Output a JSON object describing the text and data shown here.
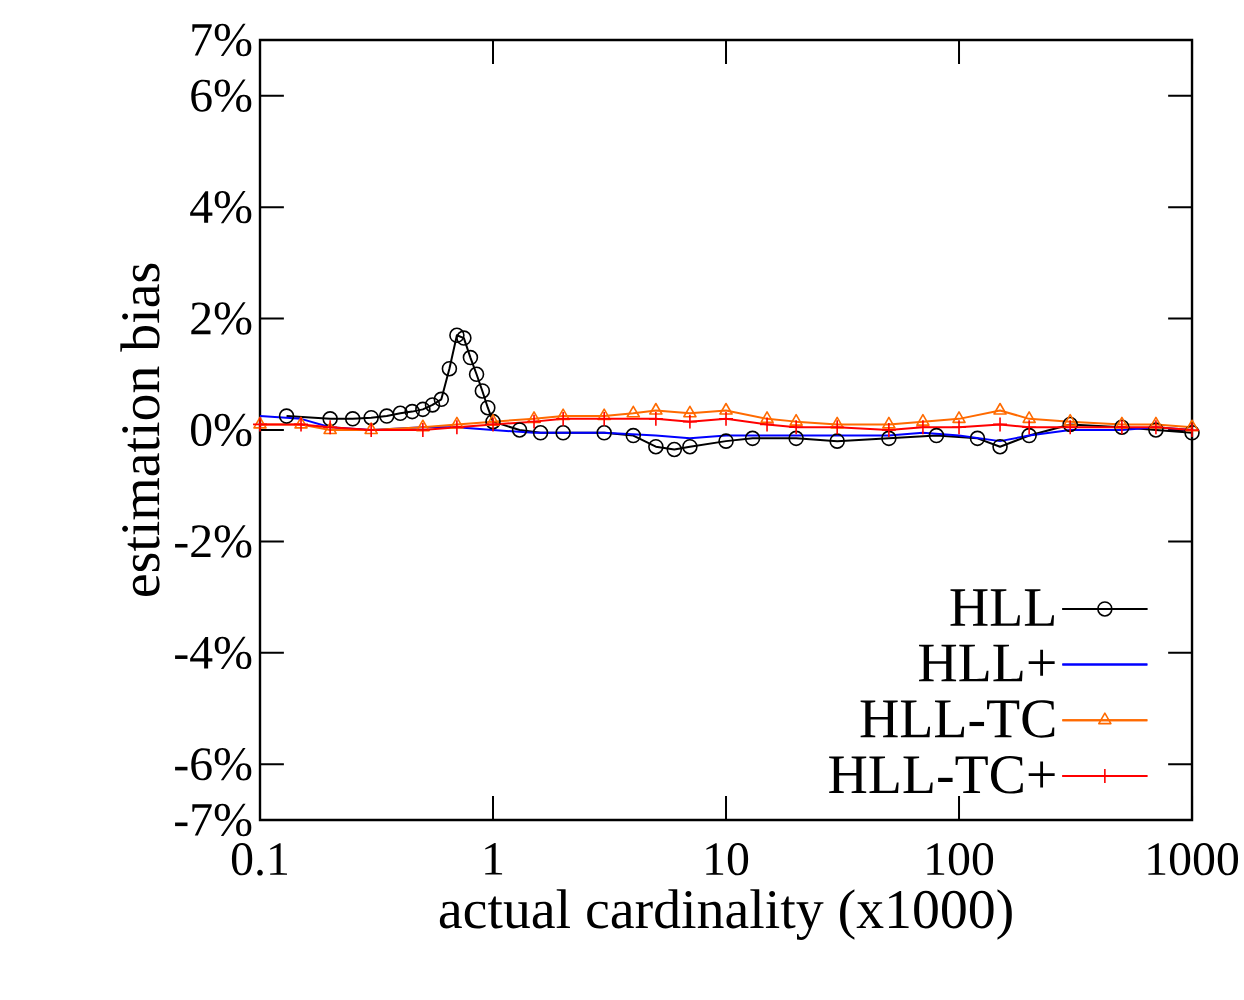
{
  "chart_data": {
    "type": "line",
    "xlabel": "actual cardinality (x1000)",
    "ylabel": "estimation bias",
    "log": "x",
    "grid": false,
    "legend": "bottom right",
    "xlim": [
      0.1,
      1000
    ],
    "xticks": [
      0.1,
      1,
      10,
      100,
      1000
    ],
    "ylim": [
      -7,
      7
    ],
    "yticks": [
      {
        "value": -7,
        "label": "-7%"
      },
      {
        "value": -6,
        "label": "-6%"
      },
      {
        "value": -4,
        "label": "-4%"
      },
      {
        "value": -2,
        "label": "-2%"
      },
      {
        "value": 0,
        "label": "0%"
      },
      {
        "value": 2,
        "label": "2%"
      },
      {
        "value": 4,
        "label": "4%"
      },
      {
        "value": 6,
        "label": "6%"
      },
      {
        "value": 7,
        "label": "7%"
      }
    ],
    "series": [
      {
        "name": "HLL",
        "color": "#000000",
        "marker": "circle",
        "x": [
          0.13,
          0.2,
          0.25,
          0.3,
          0.35,
          0.4,
          0.45,
          0.5,
          0.55,
          0.6,
          0.65,
          0.7,
          0.75,
          0.8,
          0.85,
          0.9,
          0.95,
          1.0,
          1.3,
          1.6,
          2,
          3,
          4,
          5,
          6,
          7,
          10,
          13,
          20,
          30,
          50,
          80,
          120,
          150,
          200,
          300,
          500,
          700,
          1000
        ],
        "values": [
          0.25,
          0.2,
          0.2,
          0.22,
          0.25,
          0.3,
          0.33,
          0.37,
          0.45,
          0.55,
          1.1,
          1.7,
          1.65,
          1.3,
          1.0,
          0.7,
          0.4,
          0.15,
          0.0,
          -0.05,
          -0.05,
          -0.05,
          -0.1,
          -0.3,
          -0.35,
          -0.3,
          -0.2,
          -0.15,
          -0.15,
          -0.2,
          -0.15,
          -0.1,
          -0.15,
          -0.3,
          -0.1,
          0.1,
          0.05,
          0.0,
          -0.05
        ]
      },
      {
        "name": "HLL+",
        "color": "#0000ff",
        "marker": "none",
        "x": [
          0.1,
          0.15,
          0.2,
          0.3,
          0.5,
          0.7,
          1,
          1.5,
          2,
          3,
          5,
          7,
          10,
          15,
          20,
          30,
          50,
          70,
          100,
          150,
          200,
          300,
          500,
          700,
          1000
        ],
        "values": [
          0.25,
          0.2,
          0.05,
          0.0,
          0.05,
          0.05,
          0.0,
          -0.05,
          -0.05,
          -0.05,
          -0.1,
          -0.15,
          -0.1,
          -0.1,
          -0.1,
          -0.1,
          -0.1,
          -0.05,
          -0.1,
          -0.2,
          -0.1,
          0.0,
          0.0,
          0.05,
          0.0
        ]
      },
      {
        "name": "HLL-TC",
        "color": "#ff6a00",
        "marker": "triangle",
        "x": [
          0.1,
          0.15,
          0.2,
          0.3,
          0.5,
          0.7,
          1,
          1.5,
          2,
          3,
          4,
          5,
          7,
          10,
          15,
          20,
          30,
          50,
          70,
          100,
          150,
          200,
          300,
          500,
          700,
          1000
        ],
        "values": [
          0.1,
          0.1,
          0.0,
          0.0,
          0.05,
          0.1,
          0.15,
          0.2,
          0.25,
          0.25,
          0.3,
          0.35,
          0.3,
          0.35,
          0.2,
          0.15,
          0.1,
          0.1,
          0.15,
          0.2,
          0.35,
          0.2,
          0.15,
          0.1,
          0.1,
          0.05
        ]
      },
      {
        "name": "HLL-TC+",
        "color": "#ff0000",
        "marker": "cross",
        "x": [
          0.1,
          0.15,
          0.2,
          0.3,
          0.5,
          0.7,
          1,
          1.5,
          2,
          3,
          5,
          7,
          10,
          15,
          20,
          30,
          50,
          70,
          100,
          150,
          200,
          300,
          500,
          700,
          1000
        ],
        "values": [
          0.1,
          0.1,
          0.05,
          0.0,
          0.0,
          0.05,
          0.1,
          0.15,
          0.2,
          0.2,
          0.2,
          0.15,
          0.2,
          0.1,
          0.05,
          0.05,
          0.0,
          0.05,
          0.05,
          0.1,
          0.05,
          0.05,
          0.05,
          0.05,
          0.0
        ]
      }
    ]
  }
}
